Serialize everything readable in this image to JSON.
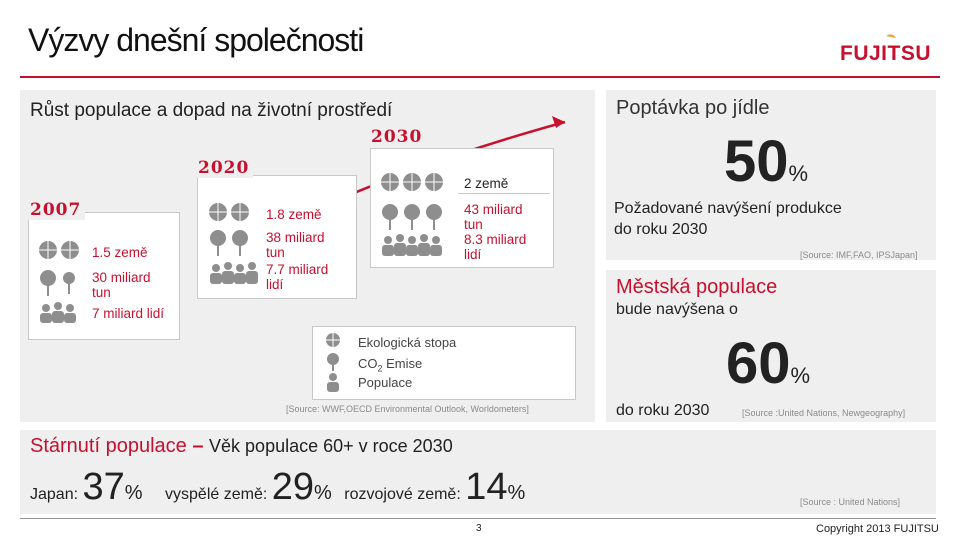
{
  "title": "Výzvy dnešní společnosti",
  "brand": "FUJITSU",
  "panel_population": {
    "heading": "Růst populace a dopad na životní prostředí",
    "years": [
      "2007",
      "2020",
      "2030"
    ],
    "col2007": {
      "countries": "1.5 země",
      "co2": "30 miliard tun",
      "people": "7 miliard lidí"
    },
    "col2020": {
      "countries": "1.8 země",
      "co2": "38 miliard tun",
      "people": "7.7 miliard lidí"
    },
    "col2030": {
      "countries": "2 země",
      "co2": "43 miliard tun",
      "people": "8.3 miliard lidí"
    },
    "legend": {
      "footprint": "Ekologická stopa",
      "co2_prefix": "CO",
      "co2_sub": "2",
      "co2_suffix": " Emise",
      "population": "Populace"
    },
    "source": "[Source: WWF,OECD Environmental Outlook, Worldometers]"
  },
  "panel_food": {
    "heading": "Poptávka po jídle",
    "value": "50",
    "unit": "%",
    "desc1": "Požadované navýšení produkce",
    "desc2": "do roku 2030",
    "source": "[Source: IMF,FAO, IPSJapan]"
  },
  "panel_urban": {
    "heading": "Městská populace",
    "sub": "bude navýšena o",
    "value": "60",
    "unit": "%",
    "desc": "do roku 2030",
    "source": "[Source :United Nations, Newgeography]"
  },
  "aging": {
    "heading": "Stárnutí populace",
    "dash": "–",
    "subtitle": "Věk populace  60+ v roce 2030",
    "japan_label": "Japan: ",
    "japan_value": "37",
    "developed_label": "vyspělé země: ",
    "developed_value": "29",
    "developing_label": "rozvojové země: ",
    "developing_value": "14",
    "unit": "%",
    "source": "[Source : United Nations]"
  },
  "footer": {
    "page": "3",
    "copyright": "Copyright 2013 FUJITSU"
  },
  "colors": {
    "accent": "#c8102e",
    "panel": "#efefef",
    "icon": "#9a9a9a",
    "title_line": "#c8102e"
  },
  "icons": [
    "globe-icon",
    "pin-icon",
    "people-icon",
    "trend-arrow-icon",
    "fujitsu-logo"
  ]
}
